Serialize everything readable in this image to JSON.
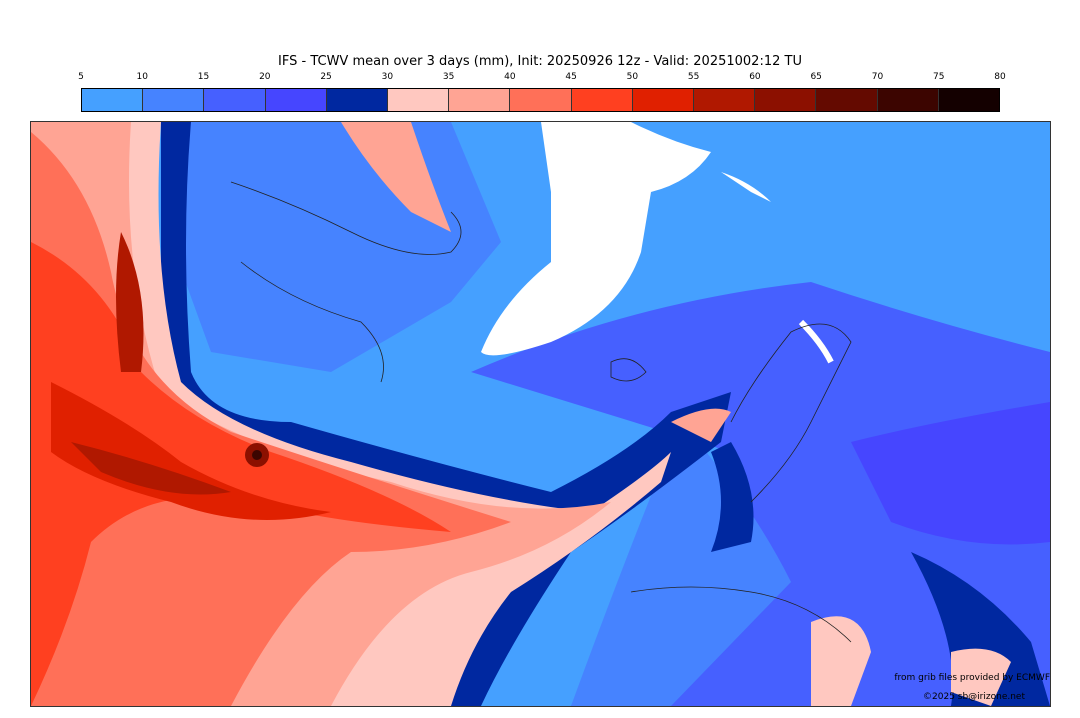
{
  "title": "IFS - TCWV mean over 3 days (mm), Init: 20250926 12z - Valid: 20251002:12 TU",
  "colorbar": {
    "ticks": [
      "5",
      "10",
      "15",
      "20",
      "25",
      "30",
      "35",
      "40",
      "45",
      "50",
      "55",
      "60",
      "65",
      "70",
      "75",
      "80"
    ],
    "colors": [
      "#45a0ff",
      "#4683ff",
      "#4660ff",
      "#4646ff",
      "#0028a0",
      "#ffc8c0",
      "#ffa494",
      "#ff7058",
      "#ff4020",
      "#e02000",
      "#b01800",
      "#8c1000",
      "#640a00",
      "#3c0500",
      "#140000"
    ]
  },
  "credits": {
    "source": "from grib files provided by ECMWF",
    "copyright": "©2025 sb@irizone.net"
  }
}
